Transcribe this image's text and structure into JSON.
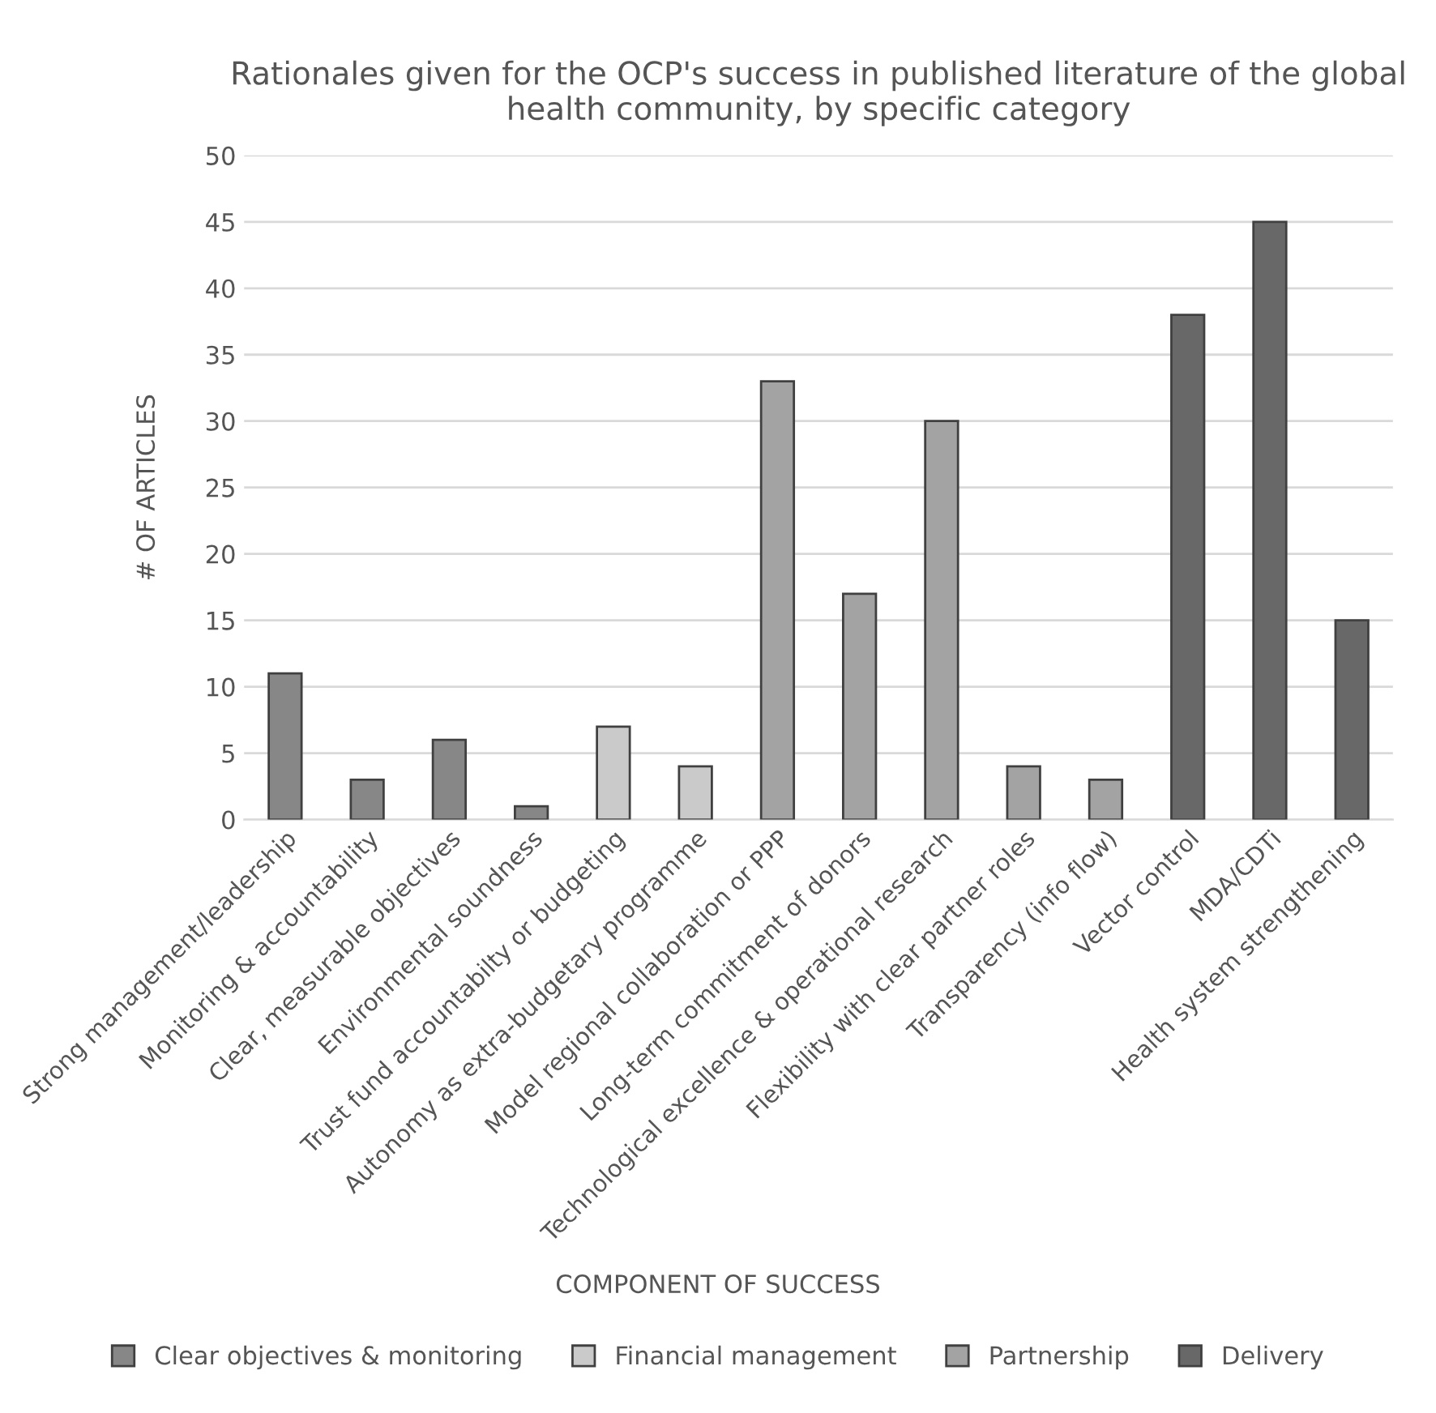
{
  "chart_data": {
    "type": "bar",
    "title": "Rationales given for the OCP's success in published literature of the global health community, by specific category",
    "xlabel": "COMPONENT OF SUCCESS",
    "ylabel": "# OF ARTICLES",
    "categories": [
      "Strong management/leadership",
      "Monitoring & accountability",
      "Clear, measurable objectives",
      "Environmental soundness",
      "Trust fund accountabilty or budgeting",
      "Autonomy as extra-budgetary programme",
      "Model regional collaboration or PPP",
      "Long-term commitment of donors",
      "Technological excellence & operational research",
      "Flexibility with clear partner roles",
      "Transparency (info flow)",
      "Vector control",
      "MDA/CDTi",
      "Health system strengthening"
    ],
    "series": [
      {
        "name": "Clear objectives & monitoring",
        "color": "#878787",
        "values": [
          11,
          3,
          6,
          1,
          null,
          null,
          null,
          null,
          null,
          null,
          null,
          null,
          null,
          null
        ]
      },
      {
        "name": "Financial management",
        "color": "#cacaca",
        "values": [
          null,
          null,
          null,
          null,
          7,
          4,
          null,
          null,
          null,
          null,
          null,
          null,
          null,
          null
        ]
      },
      {
        "name": "Partnership",
        "color": "#a3a3a3",
        "values": [
          null,
          null,
          null,
          null,
          null,
          null,
          33,
          17,
          30,
          4,
          3,
          null,
          null,
          null
        ]
      },
      {
        "name": "Delivery",
        "color": "#686868",
        "values": [
          null,
          null,
          null,
          null,
          null,
          null,
          null,
          null,
          null,
          null,
          null,
          38,
          45,
          15
        ]
      }
    ],
    "ylim": [
      0,
      50
    ],
    "yticks": [
      0,
      5,
      10,
      15,
      20,
      25,
      30,
      35,
      40,
      45,
      50
    ],
    "grid": "y",
    "legend": "bottom"
  }
}
